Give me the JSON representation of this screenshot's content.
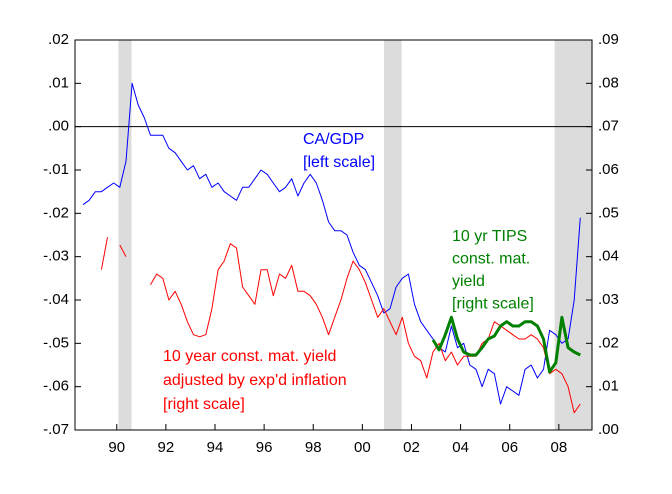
{
  "chart_data": {
    "type": "line",
    "xlim": [
      1988.8,
      2009.85
    ],
    "xticks": [
      {
        "value": 1990.5,
        "label": "90"
      },
      {
        "value": 1992.5,
        "label": "92"
      },
      {
        "value": 1994.5,
        "label": "94"
      },
      {
        "value": 1996.5,
        "label": "96"
      },
      {
        "value": 1998.5,
        "label": "98"
      },
      {
        "value": 2000.5,
        "label": "00"
      },
      {
        "value": 2002.5,
        "label": "02"
      },
      {
        "value": 2004.5,
        "label": "04"
      },
      {
        "value": 2006.5,
        "label": "06"
      },
      {
        "value": 2008.5,
        "label": "08"
      }
    ],
    "ylim": [
      -0.07,
      0.02
    ],
    "yticks": [
      {
        "value": -0.07,
        "label": "-.07"
      },
      {
        "value": -0.06,
        "label": "-.06"
      },
      {
        "value": -0.05,
        "label": "-.05"
      },
      {
        "value": -0.04,
        "label": "-.04"
      },
      {
        "value": -0.03,
        "label": "-.03"
      },
      {
        "value": -0.02,
        "label": "-.02"
      },
      {
        "value": -0.01,
        "label": "-.01"
      },
      {
        "value": 0,
        "label": ".00"
      },
      {
        "value": 0.01,
        "label": ".01"
      },
      {
        "value": 0.02,
        "label": ".02"
      }
    ],
    "y2lim": [
      0,
      0.09
    ],
    "y2ticks": [
      {
        "value": 0,
        "label": ".00"
      },
      {
        "value": 0.01,
        "label": ".01"
      },
      {
        "value": 0.02,
        "label": ".02"
      },
      {
        "value": 0.03,
        "label": ".03"
      },
      {
        "value": 0.04,
        "label": ".04"
      },
      {
        "value": 0.05,
        "label": ".05"
      },
      {
        "value": 0.06,
        "label": ".06"
      },
      {
        "value": 0.07,
        "label": ".07"
      },
      {
        "value": 0.08,
        "label": ".08"
      },
      {
        "value": 0.09,
        "label": ".09"
      }
    ],
    "recessions": [
      [
        1990.57,
        1991.1
      ],
      [
        2001.38,
        2002.1
      ],
      [
        2008.33,
        2009.85
      ]
    ],
    "x": [
      1989.125,
      1989.375,
      1989.625,
      1989.875,
      1990.125,
      1990.375,
      1990.625,
      1990.875,
      1991.125,
      1991.375,
      1991.625,
      1991.875,
      1992.125,
      1992.375,
      1992.625,
      1992.875,
      1993.125,
      1993.375,
      1993.625,
      1993.875,
      1994.125,
      1994.375,
      1994.625,
      1994.875,
      1995.125,
      1995.375,
      1995.625,
      1995.875,
      1996.125,
      1996.375,
      1996.625,
      1996.875,
      1997.125,
      1997.375,
      1997.625,
      1997.875,
      1998.125,
      1998.375,
      1998.625,
      1998.875,
      1999.125,
      1999.375,
      1999.625,
      1999.875,
      2000.125,
      2000.375,
      2000.625,
      2000.875,
      2001.125,
      2001.375,
      2001.625,
      2001.875,
      2002.125,
      2002.375,
      2002.625,
      2002.875,
      2003.125,
      2003.375,
      2003.625,
      2003.875,
      2004.125,
      2004.375,
      2004.625,
      2004.875,
      2005.125,
      2005.375,
      2005.625,
      2005.875,
      2006.125,
      2006.375,
      2006.625,
      2006.875,
      2007.125,
      2007.375,
      2007.625,
      2007.875,
      2008.125,
      2008.375,
      2008.625,
      2008.875,
      2009.125,
      2009.375
    ],
    "series": [
      {
        "name": "CA/GDP",
        "color": "#0000ff",
        "width": 1,
        "values": [
          -0.018,
          -0.017,
          -0.015,
          -0.015,
          -0.014,
          -0.013,
          -0.014,
          -0.008,
          0.01,
          0.005,
          0.002,
          -0.002,
          -0.002,
          -0.002,
          -0.005,
          -0.006,
          -0.008,
          -0.01,
          -0.009,
          -0.012,
          -0.011,
          -0.014,
          -0.013,
          -0.015,
          -0.016,
          -0.017,
          -0.014,
          -0.014,
          -0.012,
          -0.01,
          -0.011,
          -0.013,
          -0.015,
          -0.014,
          -0.012,
          -0.016,
          -0.013,
          -0.011,
          -0.013,
          -0.017,
          -0.022,
          -0.024,
          -0.024,
          -0.025,
          -0.029,
          -0.032,
          -0.033,
          -0.036,
          -0.039,
          -0.043,
          -0.042,
          -0.037,
          -0.035,
          -0.034,
          -0.041,
          -0.045,
          -0.047,
          -0.049,
          -0.051,
          -0.052,
          -0.046,
          -0.051,
          -0.05,
          -0.055,
          -0.056,
          -0.06,
          -0.056,
          -0.057,
          -0.064,
          -0.06,
          -0.061,
          -0.062,
          -0.056,
          -0.055,
          -0.058,
          -0.056,
          -0.047,
          -0.048,
          -0.05,
          -0.049,
          -0.04,
          -0.021
        ]
      },
      {
        "name": "10 year const. mat. yield adjusted by exp'd inflation",
        "color": "#ff0000",
        "width": 1,
        "axis": "y2",
        "values": [
          null,
          null,
          null,
          0.037,
          0.0445,
          null,
          0.0427,
          0.04,
          null,
          null,
          null,
          0.0335,
          0.036,
          0.035,
          0.03,
          0.032,
          0.029,
          0.025,
          0.022,
          0.0215,
          0.022,
          0.028,
          0.037,
          0.039,
          0.043,
          0.042,
          0.033,
          0.031,
          0.029,
          0.037,
          0.037,
          0.031,
          0.036,
          0.035,
          0.038,
          0.032,
          0.032,
          0.031,
          0.029,
          0.026,
          0.022,
          0.026,
          0.03,
          0.035,
          0.039,
          0.037,
          0.034,
          0.03,
          0.026,
          0.028,
          0.025,
          0.022,
          0.026,
          0.02,
          0.017,
          0.016,
          0.012,
          0.018,
          0.02,
          0.016,
          0.018,
          0.015,
          0.017,
          0.017,
          0.017,
          0.02,
          0.021,
          0.025,
          0.024,
          0.023,
          0.022,
          0.021,
          0.021,
          0.022,
          0.021,
          0.019,
          0.013,
          0.014,
          0.013,
          0.01,
          0.004,
          0.006
        ]
      },
      {
        "name": "10 yr TIPS const. mat. yield",
        "color": "#008000",
        "width": 3,
        "axis": "y2",
        "values": [
          null,
          null,
          null,
          null,
          null,
          null,
          null,
          null,
          null,
          null,
          null,
          null,
          null,
          null,
          null,
          null,
          null,
          null,
          null,
          null,
          null,
          null,
          null,
          null,
          null,
          null,
          null,
          null,
          null,
          null,
          null,
          null,
          null,
          null,
          null,
          null,
          null,
          null,
          null,
          null,
          null,
          null,
          null,
          null,
          null,
          null,
          null,
          null,
          null,
          null,
          null,
          null,
          null,
          null,
          null,
          null,
          null,
          0.0208,
          0.0185,
          0.022,
          0.026,
          0.021,
          0.018,
          0.0173,
          0.0173,
          0.019,
          0.021,
          0.0217,
          0.024,
          0.025,
          0.024,
          0.024,
          0.025,
          0.025,
          0.024,
          0.021,
          0.0134,
          0.0155,
          0.026,
          0.019,
          0.018,
          0.0173
        ]
      }
    ],
    "annotations": [
      {
        "color": "#0000ff",
        "lines": [
          "CA/GDP",
          "[left scale]"
        ]
      },
      {
        "color": "#008000",
        "lines": [
          "10 yr TIPS",
          "const. mat.",
          "yield",
          "[right scale]"
        ]
      },
      {
        "color": "#ff0000",
        "lines": [
          "10 year const. mat. yield",
          "adjusted by exp'd inflation",
          "[right scale]"
        ]
      }
    ]
  }
}
